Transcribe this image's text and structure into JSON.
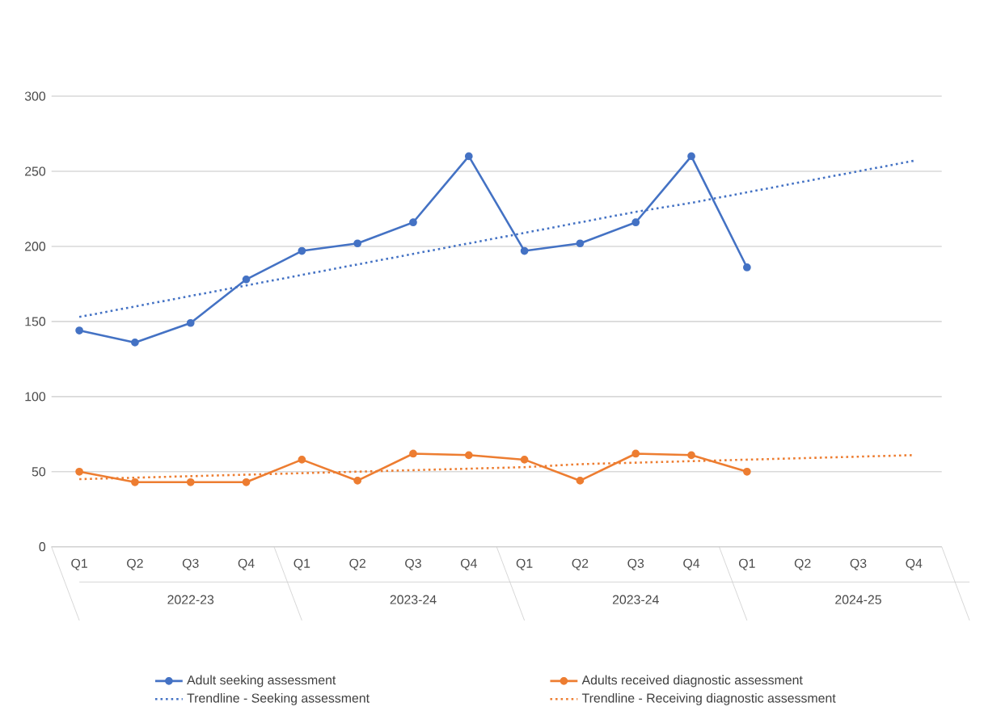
{
  "chart_data": {
    "type": "line",
    "categories": [
      "Q1",
      "Q2",
      "Q3",
      "Q4",
      "Q1",
      "Q2",
      "Q3",
      "Q4",
      "Q1",
      "Q2",
      "Q3",
      "Q4",
      "Q1",
      "Q2",
      "Q3",
      "Q4"
    ],
    "annotations": [
      "2022-23",
      "2023-24",
      "2023-24",
      "2024-25"
    ],
    "series": [
      {
        "name": "Adult seeking assessment",
        "color": "#4472c4",
        "marker": "circle",
        "line_style": "solid",
        "values": [
          144,
          136,
          149,
          178,
          197,
          202,
          216,
          260,
          197,
          202,
          216,
          260,
          186,
          null,
          null,
          null
        ]
      },
      {
        "name": "Adults received diagnostic assessment",
        "color": "#ed7d31",
        "marker": "circle",
        "line_style": "solid",
        "values": [
          50,
          43,
          43,
          43,
          58,
          44,
          62,
          61,
          58,
          44,
          62,
          61,
          50,
          null,
          null,
          null
        ]
      },
      {
        "name": "Trendline - Seeking assessment",
        "color": "#4472c4",
        "marker": "none",
        "line_style": "dotted",
        "values": [
          153,
          160,
          167,
          174,
          181,
          188,
          195,
          202,
          209,
          216,
          223,
          229,
          236,
          243,
          250,
          257
        ]
      },
      {
        "name": "Trendline - Receiving diagnostic assessment",
        "color": "#ed7d31",
        "marker": "none",
        "line_style": "dotted",
        "values": [
          45,
          46,
          47,
          48,
          49,
          50,
          51,
          52,
          53,
          55,
          56,
          57,
          58,
          59,
          60,
          61
        ]
      }
    ],
    "ylim": [
      0,
      300
    ],
    "yticks": [
      0,
      50,
      100,
      150,
      200,
      250,
      300
    ],
    "grid": "y",
    "legend": "bottom"
  }
}
